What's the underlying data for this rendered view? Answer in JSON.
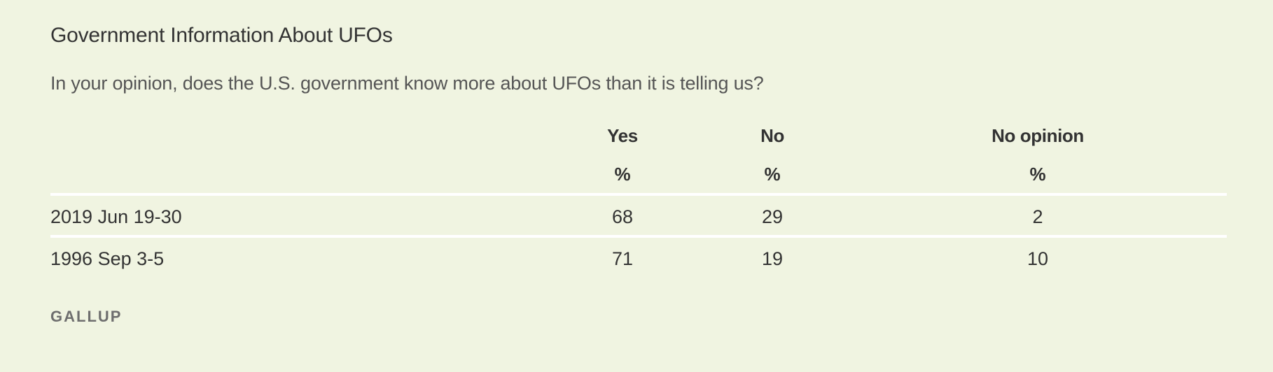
{
  "title": "Government Information About UFOs",
  "question": "In your opinion, does the U.S. government know more about UFOs than it is telling us?",
  "source": "GALLUP",
  "chart_data": {
    "type": "table",
    "columns": [
      "Yes",
      "No",
      "No opinion"
    ],
    "units": [
      "%",
      "%",
      "%"
    ],
    "rows": [
      {
        "label": "2019 Jun 19-30",
        "values": [
          "68",
          "29",
          "2"
        ]
      },
      {
        "label": "1996 Sep 3-5",
        "values": [
          "71",
          "19",
          "10"
        ]
      }
    ]
  },
  "colors": {
    "background": "#f0f4e1",
    "text": "#333333",
    "muted": "#555555",
    "divider": "#ffffff"
  }
}
